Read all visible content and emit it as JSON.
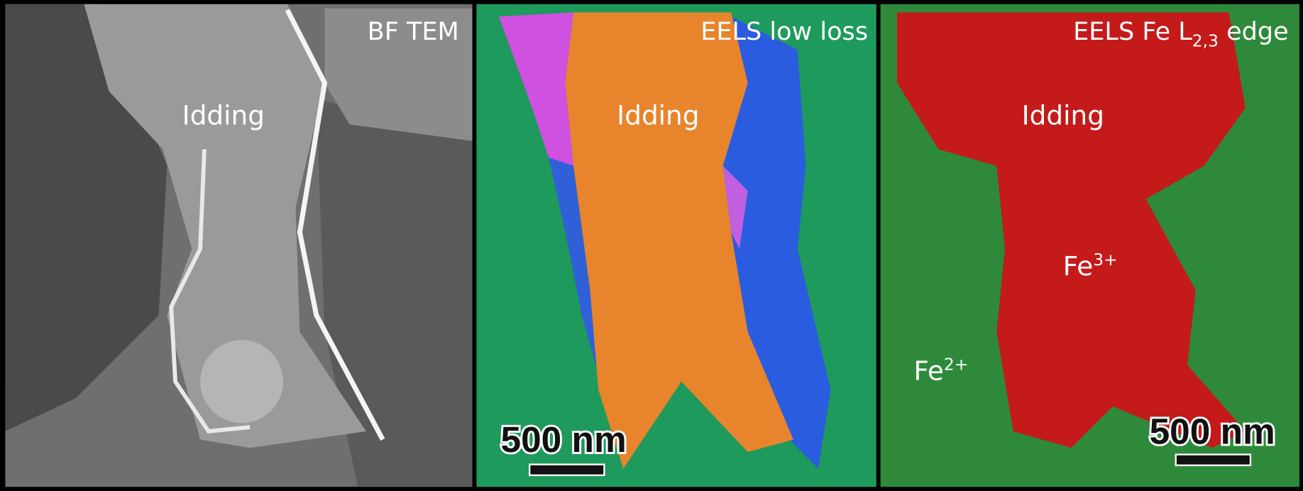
{
  "panels": [
    {
      "title": {
        "text": "BF TEM"
      },
      "label": "Idding"
    },
    {
      "title": {
        "text": "EELS low loss"
      },
      "label": "Idding",
      "scale_bar": "500 nm"
    },
    {
      "title": {
        "text": "EELS Fe L",
        "sub": "2,3",
        "after": " edge"
      },
      "label": "Idding",
      "annotations": [
        {
          "base": "Fe",
          "sup": "3+"
        },
        {
          "base": "Fe",
          "sup": "2+"
        }
      ],
      "scale_bar": "500 nm"
    }
  ]
}
